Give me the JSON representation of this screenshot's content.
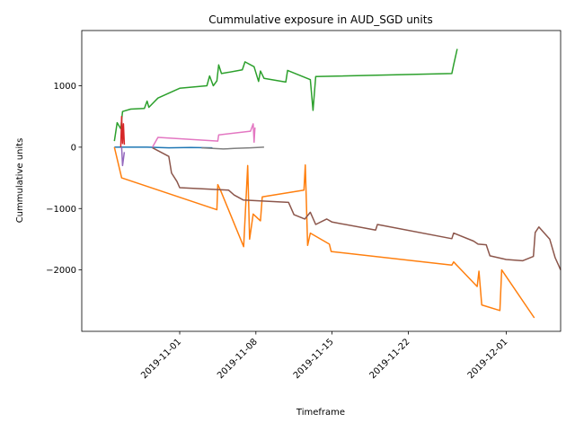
{
  "chart_data": {
    "type": "line",
    "title": "Cummulative exposure in AUD_SGD units",
    "xlabel": "Timeframe",
    "ylabel": "Cummulative units",
    "x_axis": "date",
    "xlim": [
      "2019-10-23",
      "2019-12-06"
    ],
    "ylim": [
      -3000,
      1900
    ],
    "x_ticks": [
      "2019-11-01",
      "2019-11-08",
      "2019-11-15",
      "2019-11-22",
      "2019-12-01"
    ],
    "y_ticks": [
      -2000,
      -1000,
      0,
      1000
    ],
    "grid": false,
    "legend": "none",
    "series": [
      {
        "color": "#1f77b4",
        "points": [
          [
            "2019-10-26T00:00",
            0
          ],
          [
            "2019-10-29T00:00",
            0
          ],
          [
            "2019-10-31T00:00",
            -10
          ],
          [
            "2019-11-02T00:00",
            -5
          ],
          [
            "2019-11-04T00:00",
            -10
          ]
        ]
      },
      {
        "color": "#ff7f0e",
        "points": [
          [
            "2019-10-26T00:00",
            0
          ],
          [
            "2019-10-26T16:00",
            -500
          ],
          [
            "2019-11-04T10:00",
            -1020
          ],
          [
            "2019-11-04T12:00",
            -610
          ],
          [
            "2019-11-04T18:00",
            -700
          ],
          [
            "2019-11-06T21:00",
            -1620
          ],
          [
            "2019-11-07T06:00",
            -300
          ],
          [
            "2019-11-07T10:00",
            -1500
          ],
          [
            "2019-11-07T18:00",
            -1090
          ],
          [
            "2019-11-08T10:00",
            -1200
          ],
          [
            "2019-11-08T14:00",
            -810
          ],
          [
            "2019-11-12T10:00",
            -700
          ],
          [
            "2019-11-12T13:00",
            -290
          ],
          [
            "2019-11-12T18:00",
            -1600
          ],
          [
            "2019-11-13T00:00",
            -1400
          ],
          [
            "2019-11-14T18:00",
            -1580
          ],
          [
            "2019-11-14T22:00",
            -1700
          ],
          [
            "2019-11-26T00:00",
            -1920
          ],
          [
            "2019-11-26T04:00",
            -1870
          ],
          [
            "2019-11-28T08:00",
            -2270
          ],
          [
            "2019-11-28T12:00",
            -2020
          ],
          [
            "2019-11-28T18:00",
            -2570
          ],
          [
            "2019-11-30T10:00",
            -2660
          ],
          [
            "2019-11-30T14:00",
            -2000
          ],
          [
            "2019-12-03T14:00",
            -2780
          ]
        ]
      },
      {
        "color": "#2ca02c",
        "points": [
          [
            "2019-10-26T00:00",
            100
          ],
          [
            "2019-10-26T06:00",
            400
          ],
          [
            "2019-10-26T14:00",
            300
          ],
          [
            "2019-10-26T18:00",
            580
          ],
          [
            "2019-10-27T12:00",
            620
          ],
          [
            "2019-10-28T18:00",
            630
          ],
          [
            "2019-10-29T00:00",
            750
          ],
          [
            "2019-10-29T04:00",
            650
          ],
          [
            "2019-10-30T00:00",
            800
          ],
          [
            "2019-11-01T00:00",
            960
          ],
          [
            "2019-11-03T12:00",
            1000
          ],
          [
            "2019-11-03T18:00",
            1160
          ],
          [
            "2019-11-04T02:00",
            1000
          ],
          [
            "2019-11-04T10:00",
            1080
          ],
          [
            "2019-11-04T14:00",
            1340
          ],
          [
            "2019-11-04T20:00",
            1200
          ],
          [
            "2019-11-06T18:00",
            1260
          ],
          [
            "2019-11-07T00:00",
            1390
          ],
          [
            "2019-11-07T20:00",
            1310
          ],
          [
            "2019-11-08T06:00",
            1070
          ],
          [
            "2019-11-08T10:00",
            1240
          ],
          [
            "2019-11-08T18:00",
            1120
          ],
          [
            "2019-11-10T18:00",
            1060
          ],
          [
            "2019-11-10T22:00",
            1250
          ],
          [
            "2019-11-13T00:00",
            1100
          ],
          [
            "2019-11-13T06:00",
            600
          ],
          [
            "2019-11-13T12:00",
            1150
          ],
          [
            "2019-11-26T00:00",
            1200
          ],
          [
            "2019-11-26T04:00",
            1340
          ],
          [
            "2019-11-26T12:00",
            1600
          ]
        ]
      },
      {
        "color": "#d62728",
        "points": [
          [
            "2019-10-26T14:00",
            0
          ],
          [
            "2019-10-26T16:00",
            500
          ],
          [
            "2019-10-26T18:00",
            60
          ],
          [
            "2019-10-26T20:00",
            380
          ],
          [
            "2019-10-26T22:00",
            40
          ]
        ]
      },
      {
        "color": "#9467bd",
        "points": [
          [
            "2019-10-26T16:00",
            0
          ],
          [
            "2019-10-26T18:00",
            -300
          ],
          [
            "2019-10-26T22:00",
            -80
          ]
        ]
      },
      {
        "color": "#8c564b",
        "points": [
          [
            "2019-10-29T12:00",
            -10
          ],
          [
            "2019-10-31T00:00",
            -150
          ],
          [
            "2019-10-31T06:00",
            -420
          ],
          [
            "2019-10-31T18:00",
            -560
          ],
          [
            "2019-11-01T00:00",
            -660
          ],
          [
            "2019-11-05T12:00",
            -700
          ],
          [
            "2019-11-06T00:00",
            -780
          ],
          [
            "2019-11-06T20:00",
            -860
          ],
          [
            "2019-11-11T00:00",
            -900
          ],
          [
            "2019-11-11T12:00",
            -1100
          ],
          [
            "2019-11-12T12:00",
            -1170
          ],
          [
            "2019-11-13T00:00",
            -1060
          ],
          [
            "2019-11-13T12:00",
            -1260
          ],
          [
            "2019-11-14T12:00",
            -1170
          ],
          [
            "2019-11-15T00:00",
            -1220
          ],
          [
            "2019-11-19T00:00",
            -1350
          ],
          [
            "2019-11-19T04:00",
            -1260
          ],
          [
            "2019-11-26T00:00",
            -1490
          ],
          [
            "2019-11-26T04:00",
            -1400
          ],
          [
            "2019-11-28T00:00",
            -1530
          ],
          [
            "2019-11-28T10:00",
            -1580
          ],
          [
            "2019-11-29T04:00",
            -1590
          ],
          [
            "2019-11-29T12:00",
            -1770
          ],
          [
            "2019-12-01T00:00",
            -1830
          ],
          [
            "2019-12-02T12:00",
            -1850
          ],
          [
            "2019-12-03T12:00",
            -1780
          ],
          [
            "2019-12-03T16:00",
            -1390
          ],
          [
            "2019-12-04T00:00",
            -1300
          ],
          [
            "2019-12-05T00:00",
            -1500
          ],
          [
            "2019-12-05T12:00",
            -1800
          ],
          [
            "2019-12-05T18:00",
            -1900
          ],
          [
            "2019-12-06T00:00",
            -2000
          ]
        ]
      },
      {
        "color": "#e377c2",
        "points": [
          [
            "2019-10-29T12:00",
            0
          ],
          [
            "2019-10-30T00:00",
            160
          ],
          [
            "2019-11-04T12:00",
            100
          ],
          [
            "2019-11-04T14:00",
            200
          ],
          [
            "2019-11-07T12:00",
            260
          ],
          [
            "2019-11-07T18:00",
            380
          ],
          [
            "2019-11-07T20:00",
            80
          ],
          [
            "2019-11-07T22:00",
            320
          ]
        ]
      },
      {
        "color": "#7f7f7f",
        "points": [
          [
            "2019-11-03T00:00",
            -10
          ],
          [
            "2019-11-05T00:00",
            -30
          ],
          [
            "2019-11-06T00:00",
            -20
          ],
          [
            "2019-11-07T12:00",
            -10
          ],
          [
            "2019-11-08T18:00",
            0
          ]
        ]
      }
    ]
  }
}
